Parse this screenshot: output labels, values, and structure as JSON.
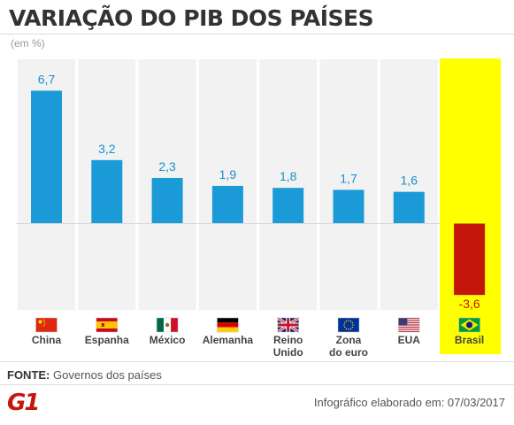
{
  "header": {
    "title": "VARIAÇÃO DO PIB DOS PAÍSES",
    "unit": "(em %)"
  },
  "chart_data": {
    "type": "bar",
    "categories": [
      "China",
      "Espanha",
      "México",
      "Alemanha",
      "Reino Unido",
      "Zona do euro",
      "EUA",
      "Brasil"
    ],
    "values": [
      6.7,
      3.2,
      2.3,
      1.9,
      1.8,
      1.7,
      1.6,
      -3.6
    ],
    "value_labels": [
      "6,7",
      "3,2",
      "2,3",
      "1,9",
      "1,8",
      "1,7",
      "1,6",
      "-3,6"
    ],
    "category_lines": [
      [
        "China"
      ],
      [
        "Espanha"
      ],
      [
        "México"
      ],
      [
        "Alemanha"
      ],
      [
        "Reino",
        "Unido"
      ],
      [
        "Zona",
        "do euro"
      ],
      [
        "EUA"
      ],
      [
        "Brasil"
      ]
    ],
    "flag_icons": [
      "china-flag-icon",
      "spain-flag-icon",
      "mexico-flag-icon",
      "germany-flag-icon",
      "uk-flag-icon",
      "eu-flag-icon",
      "usa-flag-icon",
      "brazil-flag-icon"
    ],
    "highlight_category": "Brasil",
    "ylim": [
      -3.6,
      6.7
    ],
    "colors": {
      "positive": "#1a9ad6",
      "negative": "#c4170c",
      "value_label_positive": "#1a8fcc",
      "value_label_negative": "#c4170c",
      "highlight_background": "#ffff00",
      "column_background": "#f2f2f2"
    }
  },
  "footer": {
    "source_label": "FONTE:",
    "source_text": "Governos dos países",
    "logo": "G1",
    "credit": "Infográfico elaborado em: 07/03/2017"
  }
}
